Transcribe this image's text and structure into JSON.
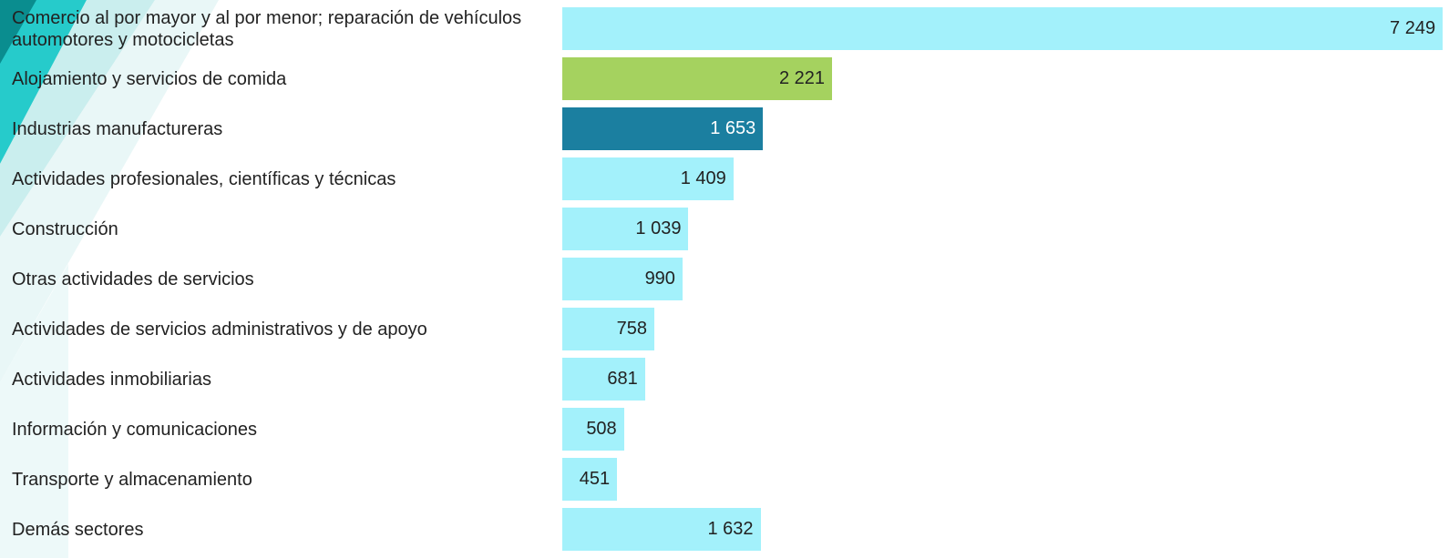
{
  "chart_data": {
    "type": "barh",
    "categories": [
      "Comercio al por mayor y al por menor; reparación de vehículos automotores y motocicletas",
      "Alojamiento y servicios de comida",
      "Industrias manufactureras",
      "Actividades profesionales, científicas y técnicas",
      "Construcción",
      "Otras actividades de servicios",
      "Actividades de servicios administrativos y de apoyo",
      "Actividades inmobiliarias",
      "Información y comunicaciones",
      "Transporte y almacenamiento",
      "Demás sectores"
    ],
    "values": [
      7249,
      2221,
      1653,
      1409,
      1039,
      990,
      758,
      681,
      508,
      451,
      1632
    ],
    "value_labels": [
      "7 249",
      "2 221",
      "1 653",
      "1 409",
      "1 039",
      "990",
      "758",
      "681",
      "508",
      "451",
      "1 632"
    ],
    "colors": [
      "#a3f1fb",
      "#a5d25f",
      "#1b7fa0",
      "#a3f1fb",
      "#a3f1fb",
      "#a3f1fb",
      "#a3f1fb",
      "#a3f1fb",
      "#a3f1fb",
      "#a3f1fb",
      "#a3f1fb"
    ]
  }
}
